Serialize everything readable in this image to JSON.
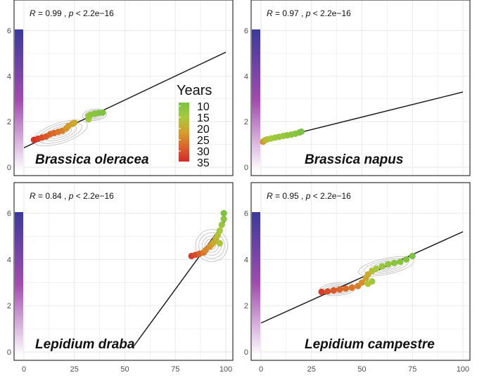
{
  "legend": {
    "title": "Years",
    "labels": [
      "10",
      "15",
      "20",
      "25",
      "30",
      "35"
    ],
    "color_stops": [
      "#7dc242",
      "#a8c93a",
      "#d4a02a",
      "#d9642a",
      "#d42a2a"
    ]
  },
  "colors": {
    "panel_border": "#333333",
    "grid": "#ebebeb",
    "fit_line": "#222222",
    "contour": "#bdbdbd",
    "bar_top": "#3a3a9a",
    "bar_mid": "#a34bb0"
  },
  "chart_data": [
    {
      "type": "scatter",
      "title": "Brassica oleracea",
      "annotation_prefix": "R = 0.99 ,",
      "annotation_p": "p < 2.2e−16",
      "xlim": [
        0,
        100
      ],
      "ylim": [
        0,
        6.2
      ],
      "x_ticks": [
        "0",
        "25",
        "50",
        "75",
        "100"
      ],
      "y_ticks": [
        "0",
        "2",
        "4",
        "6"
      ],
      "y_tick_values": [
        0,
        2,
        4,
        6
      ],
      "fit_line": {
        "x": [
          0,
          100
        ],
        "y": [
          0.85,
          5.05
        ]
      },
      "contours": [
        {
          "cx": 18,
          "cy": 1.5,
          "rx": 14,
          "ry": 0.45,
          "angle": -18
        },
        {
          "cx": 35,
          "cy": 2.3,
          "rx": 6,
          "ry": 0.25,
          "angle": -5
        }
      ],
      "points": [
        [
          5,
          1.2,
          34
        ],
        [
          7,
          1.25,
          33
        ],
        [
          9,
          1.3,
          31
        ],
        [
          11,
          1.35,
          30
        ],
        [
          13,
          1.45,
          29
        ],
        [
          15,
          1.5,
          28
        ],
        [
          17,
          1.55,
          27
        ],
        [
          19,
          1.6,
          26
        ],
        [
          21,
          1.7,
          24
        ],
        [
          22,
          1.8,
          23
        ],
        [
          24,
          1.9,
          22
        ],
        [
          25,
          1.95,
          21
        ],
        [
          32,
          2.1,
          15
        ],
        [
          32,
          2.25,
          14
        ],
        [
          33,
          2.3,
          13
        ],
        [
          35,
          2.35,
          12
        ],
        [
          37,
          2.38,
          11
        ],
        [
          39,
          2.4,
          10
        ]
      ]
    },
    {
      "type": "scatter",
      "title": "Brassica napus",
      "annotation_prefix": "R = 0.97 ,",
      "annotation_p": "p < 2.2e−16",
      "xlim": [
        0,
        100
      ],
      "ylim": [
        0,
        6.2
      ],
      "x_ticks": [
        "0",
        "25",
        "50",
        "75",
        "100"
      ],
      "y_ticks": [
        "0",
        "2",
        "4",
        "6"
      ],
      "y_tick_values": [
        0,
        2,
        4,
        6
      ],
      "fit_line": {
        "x": [
          0,
          100
        ],
        "y": [
          1.1,
          3.3
        ]
      },
      "contours": [],
      "points": [
        [
          1,
          1.12,
          24
        ],
        [
          2,
          1.18,
          20
        ],
        [
          3,
          1.22,
          18
        ],
        [
          5,
          1.26,
          16
        ],
        [
          7,
          1.3,
          15
        ],
        [
          9,
          1.33,
          14
        ],
        [
          11,
          1.37,
          14
        ],
        [
          13,
          1.4,
          13
        ],
        [
          15,
          1.43,
          12
        ],
        [
          17,
          1.47,
          12
        ],
        [
          19,
          1.52,
          11
        ],
        [
          20,
          1.56,
          10
        ]
      ]
    },
    {
      "type": "scatter",
      "title": "Lepidium draba",
      "annotation_prefix": "R = 0.84 ,",
      "annotation_p": "p < 2.2e−16",
      "xlim": [
        0,
        100
      ],
      "ylim": [
        0,
        6.2
      ],
      "x_ticks": [
        "0",
        "25",
        "50",
        "75",
        "100"
      ],
      "y_ticks": [
        "0",
        "2",
        "4",
        "6"
      ],
      "y_tick_values": [
        0,
        2,
        4,
        6
      ],
      "fit_line": {
        "x": [
          54,
          100
        ],
        "y": [
          0.2,
          5.7
        ]
      },
      "contours": [
        {
          "cx": 93,
          "cy": 4.6,
          "rx": 8,
          "ry": 0.7,
          "angle": -55
        }
      ],
      "points": [
        [
          83,
          4.15,
          33
        ],
        [
          85,
          4.2,
          31
        ],
        [
          87,
          4.25,
          29
        ],
        [
          89,
          4.3,
          27
        ],
        [
          90,
          4.4,
          25
        ],
        [
          92,
          4.55,
          24
        ],
        [
          93,
          4.65,
          23
        ],
        [
          94,
          4.75,
          21
        ],
        [
          95,
          4.9,
          20
        ],
        [
          96,
          5.05,
          18
        ],
        [
          97,
          5.25,
          16
        ],
        [
          98,
          5.5,
          14
        ],
        [
          99,
          5.75,
          12
        ],
        [
          99,
          6.0,
          10
        ],
        [
          97,
          4.7,
          17
        ]
      ]
    },
    {
      "type": "scatter",
      "title": "Lepidium campestre",
      "annotation_prefix": "R = 0.95 ,",
      "annotation_p": "p < 2.2e−16",
      "xlim": [
        0,
        100
      ],
      "ylim": [
        0,
        6.2
      ],
      "x_ticks": [
        "0",
        "25",
        "50",
        "75",
        "100"
      ],
      "y_ticks": [
        "0",
        "2",
        "4",
        "6"
      ],
      "y_tick_values": [
        0,
        2,
        4,
        6
      ],
      "fit_line": {
        "x": [
          0,
          100
        ],
        "y": [
          1.25,
          5.2
        ]
      },
      "contours": [
        {
          "cx": 38,
          "cy": 2.72,
          "rx": 9,
          "ry": 0.28,
          "angle": -5
        },
        {
          "cx": 62,
          "cy": 3.7,
          "rx": 14,
          "ry": 0.35,
          "angle": -12
        }
      ],
      "points": [
        [
          30,
          2.6,
          33
        ],
        [
          33,
          2.62,
          31
        ],
        [
          36,
          2.66,
          30
        ],
        [
          39,
          2.7,
          29
        ],
        [
          42,
          2.74,
          28
        ],
        [
          45,
          2.78,
          27
        ],
        [
          48,
          2.85,
          26
        ],
        [
          50,
          3.0,
          24
        ],
        [
          52,
          3.2,
          22
        ],
        [
          53,
          3.35,
          21
        ],
        [
          55,
          3.5,
          18
        ],
        [
          57,
          3.6,
          16
        ],
        [
          60,
          3.7,
          14
        ],
        [
          63,
          3.8,
          13
        ],
        [
          66,
          3.85,
          12
        ],
        [
          69,
          3.9,
          12
        ],
        [
          72,
          4.0,
          11
        ],
        [
          75,
          4.15,
          10
        ],
        [
          55,
          3.05,
          15
        ],
        [
          53,
          2.95,
          17
        ]
      ]
    }
  ]
}
